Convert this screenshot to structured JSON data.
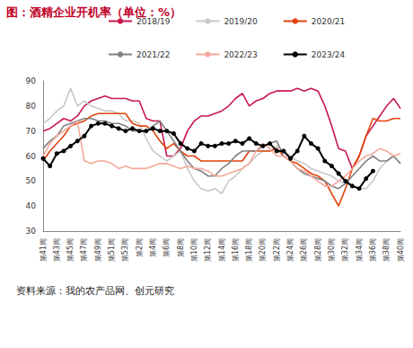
{
  "chart_data": {
    "type": "line",
    "title": "图：酒精企业开机率（单位：%）",
    "source": "资料来源：我的农产品网、创元研究",
    "categories": [
      "第41周",
      null,
      "第43周",
      null,
      "第45周",
      null,
      "第47周",
      null,
      "第49周",
      null,
      "第51周",
      null,
      "第53周",
      null,
      "第2周",
      null,
      "第4周",
      null,
      "第6周",
      null,
      "第8周",
      null,
      "第10周",
      null,
      "第12周",
      null,
      "第14周",
      null,
      "第16周",
      null,
      "第18周",
      null,
      "第20周",
      null,
      "第22周",
      null,
      "第24周",
      null,
      "第26周",
      null,
      "第28周",
      null,
      "第30周",
      null,
      "第32周",
      null,
      "第34周",
      null,
      "第36周",
      null,
      "第38周",
      null,
      "第40周"
    ],
    "ylim": [
      30,
      90
    ],
    "yticks": [
      30,
      40,
      50,
      60,
      70,
      80,
      90
    ],
    "grid": false,
    "legend": "top",
    "series": [
      {
        "name": "2018/19",
        "color": "#c8174f",
        "marker": "none",
        "values": [
          70,
          71,
          73,
          75,
          74,
          76,
          80,
          82,
          83,
          84,
          83,
          83,
          83,
          82,
          82,
          75,
          74,
          74,
          60,
          60,
          63,
          70,
          74,
          76,
          76,
          77,
          78,
          80,
          83,
          85,
          80,
          82,
          83,
          85,
          86,
          86,
          86,
          87,
          86,
          87,
          86,
          80,
          72,
          63,
          62,
          55,
          60,
          68,
          72,
          76,
          80,
          83,
          79
        ]
      },
      {
        "name": "2019/20",
        "color": "#c8c8c8",
        "marker": "none",
        "values": [
          73,
          75,
          78,
          80,
          87,
          80,
          82,
          80,
          79,
          78,
          78,
          77,
          74,
          74,
          73,
          67,
          62,
          60,
          58,
          60,
          62,
          55,
          50,
          47,
          46,
          47,
          45,
          50,
          52,
          55,
          57,
          60,
          62,
          62,
          64,
          62,
          60,
          58,
          57,
          55,
          54,
          53,
          52,
          50,
          49,
          48,
          47,
          47,
          50,
          55,
          58,
          60,
          57
        ]
      },
      {
        "name": "2020/21",
        "color": "#e0440e",
        "marker": "none",
        "values": [
          58,
          62,
          65,
          68,
          72,
          73,
          74,
          76,
          77,
          77,
          77,
          77,
          77,
          73,
          72,
          72,
          70,
          66,
          63,
          65,
          62,
          60,
          60,
          58,
          58,
          58,
          58,
          58,
          58,
          58,
          62,
          62,
          62,
          62,
          63,
          60,
          58,
          57,
          55,
          53,
          52,
          50,
          45,
          40,
          47,
          55,
          60,
          68,
          75,
          74,
          74,
          75,
          75
        ]
      },
      {
        "name": "2021/22",
        "color": "#808080",
        "marker": "none",
        "values": [
          63,
          66,
          68,
          72,
          73,
          74,
          75,
          75,
          74,
          74,
          73,
          73,
          72,
          70,
          70,
          70,
          72,
          74,
          70,
          66,
          62,
          58,
          55,
          54,
          52,
          52,
          55,
          57,
          60,
          62,
          62,
          62,
          64,
          65,
          66,
          60,
          58,
          55,
          53,
          52,
          51,
          50,
          48,
          47,
          49,
          52,
          55,
          58,
          60,
          58,
          58,
          60,
          57
        ]
      },
      {
        "name": "2022/23",
        "color": "#f5a89a",
        "marker": "none",
        "values": [
          60,
          65,
          68,
          70,
          72,
          74,
          58,
          57,
          58,
          58,
          57,
          55,
          56,
          55,
          55,
          55,
          56,
          57,
          57,
          56,
          55,
          56,
          55,
          55,
          54,
          52,
          52,
          53,
          54,
          55,
          57,
          62,
          65,
          63,
          60,
          60,
          58,
          55,
          54,
          52,
          50,
          48,
          48,
          50,
          52,
          55,
          58,
          60,
          61,
          63,
          62,
          60,
          61
        ]
      },
      {
        "name": "2023/24",
        "color": "#000000",
        "marker": "circle",
        "values": [
          59,
          56,
          61,
          62,
          64,
          66,
          68,
          72,
          73,
          73,
          72,
          71,
          70,
          71,
          70,
          70,
          71,
          70,
          70,
          69,
          65,
          63,
          62,
          65,
          64,
          64,
          65,
          65,
          66,
          65,
          67,
          65,
          64,
          65,
          62,
          62,
          59,
          62,
          68,
          65,
          63,
          58,
          56,
          53,
          50,
          48,
          47,
          51,
          54,
          null,
          null,
          null,
          null
        ]
      }
    ]
  }
}
